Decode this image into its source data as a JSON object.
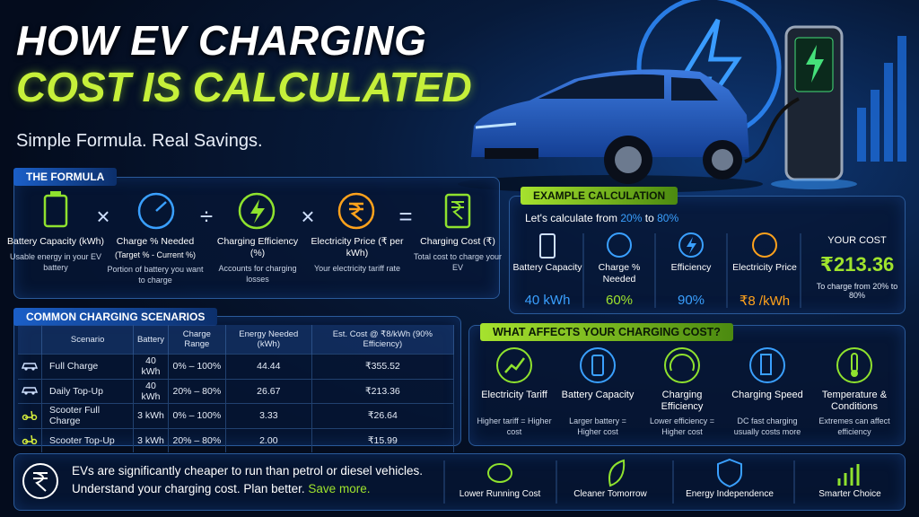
{
  "header": {
    "title_line1": "HOW EV CHARGING",
    "title_line2": "COST IS CALCULATED",
    "subtitle": "Simple Formula. Real Savings."
  },
  "formula": {
    "title": "THE FORMULA",
    "operators": [
      "×",
      "÷",
      "×",
      "="
    ],
    "items": [
      {
        "label": "Battery Capacity (kWh)",
        "note": null,
        "desc": "Usable energy in your EV battery"
      },
      {
        "label": "Charge % Needed",
        "note": "(Target % - Current %)",
        "desc": "Portion of battery you want to charge"
      },
      {
        "label": "Charging Efficiency (%)",
        "note": null,
        "desc": "Accounts for charging losses"
      },
      {
        "label": "Electricity Price (₹ per kWh)",
        "note": null,
        "desc": "Your electricity tariff rate"
      },
      {
        "label": "Charging Cost (₹)",
        "note": null,
        "desc": "Total cost to charge your EV"
      }
    ]
  },
  "example": {
    "title": "EXAMPLE CALCULATION",
    "intro": "Let's calculate from",
    "from": "20%",
    "to_word": "to",
    "to": "80%",
    "items": [
      {
        "label": "Battery Capacity",
        "value": "40 kWh"
      },
      {
        "label": "Charge % Needed",
        "value": "60%"
      },
      {
        "label": "Efficiency",
        "value": "90%"
      },
      {
        "label": "Electricity Price",
        "value": "₹8 /kWh"
      }
    ],
    "result": {
      "label": "YOUR COST",
      "value": "₹213.36",
      "desc": "To charge from 20% to 80%"
    }
  },
  "scenarios": {
    "title": "COMMON CHARGING SCENARIOS",
    "headers": [
      "Scenario",
      "Battery",
      "Charge Range",
      "Energy Needed (kWh)",
      "Est. Cost @ ₹8/kWh (90% Efficiency)"
    ],
    "rows": [
      [
        "Full Charge",
        "40 kWh",
        "0% – 100%",
        "44.44",
        "₹355.52"
      ],
      [
        "Daily Top-Up",
        "40 kWh",
        "20% – 80%",
        "26.67",
        "₹213.36"
      ],
      [
        "Scooter Full Charge",
        "3 kWh",
        "0% – 100%",
        "3.33",
        "₹26.64"
      ],
      [
        "Scooter Top-Up",
        "3 kWh",
        "20% – 80%",
        "2.00",
        "₹15.99"
      ]
    ]
  },
  "factors": {
    "title": "WHAT AFFECTS YOUR CHARGING COST?",
    "items": [
      {
        "label": "Electricity Tariff",
        "desc": "Higher tariff = Higher cost"
      },
      {
        "label": "Battery Capacity",
        "desc": "Larger battery = Higher cost"
      },
      {
        "label": "Charging Efficiency",
        "desc": "Lower efficiency = Higher cost"
      },
      {
        "label": "Charging Speed",
        "desc": "DC fast charging usually costs more"
      },
      {
        "label": "Temperature & Conditions",
        "desc": "Extremes can affect efficiency"
      }
    ]
  },
  "footer": {
    "line1": "EVs are significantly cheaper to run than petrol or diesel vehicles.",
    "line2": "Understand your charging cost. Plan better.",
    "highlight": "Save more.",
    "benefits": [
      "Lower Running Cost",
      "Cleaner Tomorrow",
      "Energy Independence",
      "Smarter Choice"
    ]
  }
}
